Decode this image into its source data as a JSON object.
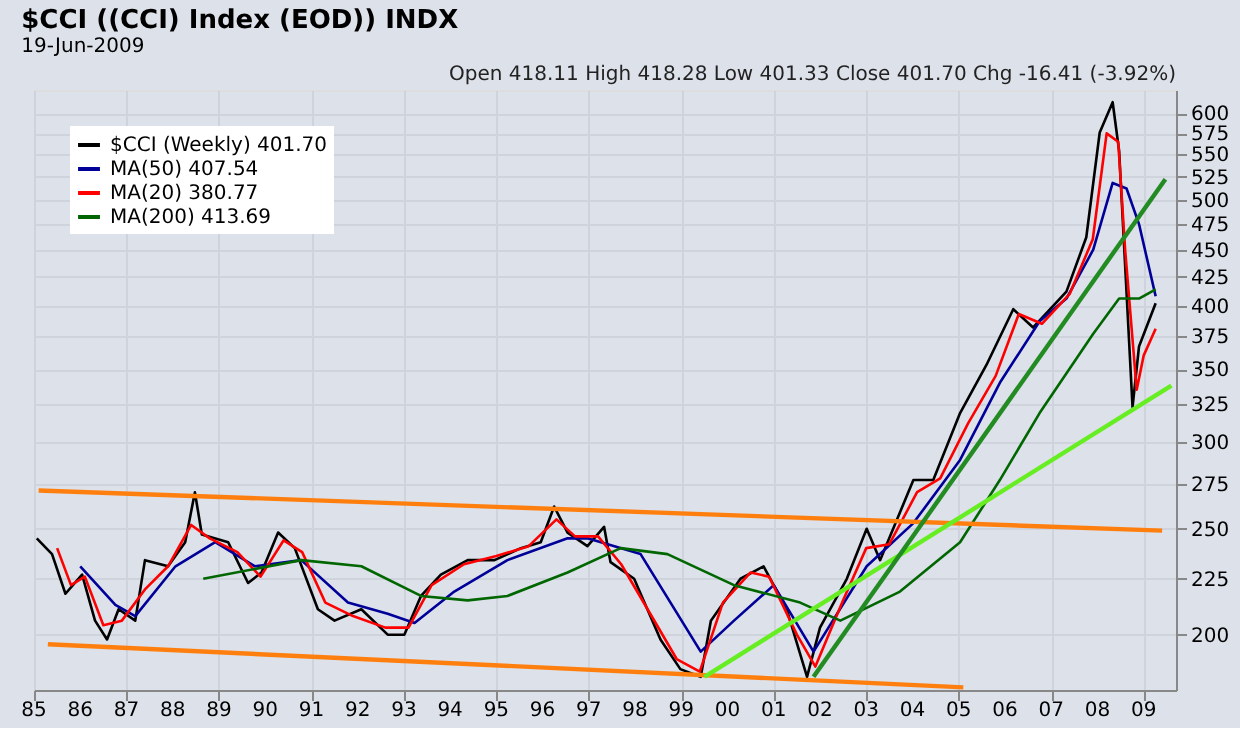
{
  "chart_data": {
    "type": "line",
    "title": "$CCI ((CCI) Index (EOD)) INDX",
    "subtitle": "19-Jun-2009",
    "annotations": [
      "Open 418.11  High 418.28  Low 401.33  Close 401.70  Chg -16.41 (-3.92%)"
    ],
    "xlim": [
      1985,
      2009.7
    ],
    "ylim": [
      178,
      630
    ],
    "log": "y",
    "grid": true,
    "legend": "top left",
    "marker": "none",
    "line_style": "solid",
    "xticks": [
      {
        "value": 1985,
        "label": "85"
      },
      {
        "value": 1986,
        "label": "86"
      },
      {
        "value": 1987,
        "label": "87"
      },
      {
        "value": 1988,
        "label": "88"
      },
      {
        "value": 1989,
        "label": "89"
      },
      {
        "value": 1990,
        "label": "90"
      },
      {
        "value": 1991,
        "label": "91"
      },
      {
        "value": 1992,
        "label": "92"
      },
      {
        "value": 1993,
        "label": "93"
      },
      {
        "value": 1994,
        "label": "94"
      },
      {
        "value": 1995,
        "label": "95"
      },
      {
        "value": 1996,
        "label": "96"
      },
      {
        "value": 1997,
        "label": "97"
      },
      {
        "value": 1998,
        "label": "98"
      },
      {
        "value": 1999,
        "label": "99"
      },
      {
        "value": 2000,
        "label": "00"
      },
      {
        "value": 2001,
        "label": "01"
      },
      {
        "value": 2002,
        "label": "02"
      },
      {
        "value": 2003,
        "label": "03"
      },
      {
        "value": 2004,
        "label": "04"
      },
      {
        "value": 2005,
        "label": "05"
      },
      {
        "value": 2006,
        "label": "06"
      },
      {
        "value": 2007,
        "label": "07"
      },
      {
        "value": 2008,
        "label": "08"
      },
      {
        "value": 2009,
        "label": "09"
      }
    ],
    "yticks": [
      200,
      225,
      250,
      275,
      300,
      325,
      350,
      375,
      400,
      425,
      450,
      475,
      500,
      525,
      550,
      575,
      600
    ],
    "series": [
      {
        "name": "$CCI (Weekly) 401.70",
        "color": "#000000",
        "x": [
          1985.06,
          1985.39,
          1985.68,
          1986.04,
          1986.32,
          1986.58,
          1986.83,
          1987.19,
          1987.4,
          1987.9,
          1988.27,
          1988.48,
          1988.63,
          1989.2,
          1989.63,
          1989.92,
          1990.28,
          1990.64,
          1991.14,
          1991.5,
          1992.08,
          1992.65,
          1993.01,
          1993.37,
          1993.8,
          1994.38,
          1994.96,
          1995.53,
          1995.96,
          1996.25,
          1996.54,
          1996.97,
          1997.33,
          1997.47,
          1997.98,
          1998.55,
          1998.98,
          1999.42,
          1999.64,
          2000.28,
          2000.78,
          2001.28,
          2001.72,
          2002.0,
          2002.58,
          2003.01,
          2003.3,
          2004.02,
          2004.45,
          2005.03,
          2005.6,
          2006.18,
          2006.61,
          2007.33,
          2007.76,
          2008.05,
          2008.33,
          2008.47,
          2008.76,
          2008.9,
          2009.26
        ],
        "values": [
          245,
          237,
          218,
          227,
          206,
          198,
          211,
          206,
          234,
          231,
          243,
          270,
          247,
          243,
          223,
          228,
          248,
          240,
          211,
          206,
          211,
          200,
          200,
          217,
          227,
          234,
          234,
          240,
          243,
          262,
          248,
          241,
          251,
          233,
          225,
          198,
          186,
          183,
          206,
          225,
          231,
          211,
          183,
          203,
          225,
          250,
          234,
          277,
          277,
          319,
          353,
          397,
          382,
          412,
          462,
          576,
          614,
          554,
          323,
          367,
          402
        ]
      },
      {
        "name": "MA(50) 407.54",
        "color": "#000099",
        "x": [
          1986.0,
          1986.76,
          1987.19,
          1988.06,
          1988.92,
          1989.78,
          1990.78,
          1991.79,
          1992.65,
          1993.23,
          1994.09,
          1995.24,
          1996.54,
          1996.97,
          1998.12,
          1999.42,
          2000.14,
          2001.0,
          2001.86,
          2003.01,
          2004.02,
          2005.03,
          2005.89,
          2006.75,
          2007.33,
          2007.91,
          2008.33,
          2008.63,
          2008.9,
          2009.26
        ],
        "values": [
          231,
          213,
          208,
          231,
          243,
          231,
          234,
          214,
          209,
          205,
          219,
          234,
          245,
          245,
          237,
          193,
          206,
          222,
          193,
          231,
          253,
          289,
          340,
          387,
          406,
          450,
          518,
          512,
          475,
          408
        ]
      },
      {
        "name": "MA(20) 380.77",
        "color": "#ff0000",
        "x": [
          1985.5,
          1985.8,
          1986.1,
          1986.5,
          1986.9,
          1987.4,
          1987.9,
          1988.4,
          1988.8,
          1989.4,
          1989.9,
          1990.4,
          1990.8,
          1991.3,
          1991.9,
          1992.6,
          1993.1,
          1993.6,
          1994.3,
          1995.0,
          1995.7,
          1996.3,
          1996.7,
          1997.2,
          1997.7,
          1998.3,
          1998.9,
          1999.4,
          1999.9,
          2000.5,
          2000.9,
          2001.5,
          2001.9,
          2002.5,
          2003.0,
          2003.5,
          2004.1,
          2004.6,
          2005.2,
          2005.8,
          2006.3,
          2006.8,
          2007.4,
          2007.9,
          2008.2,
          2008.45,
          2008.6,
          2008.85,
          2009.0,
          2009.26
        ],
        "values": [
          240,
          222,
          226,
          204,
          206,
          220,
          231,
          252,
          245,
          238,
          226,
          244,
          238,
          214,
          208,
          203,
          203,
          222,
          232,
          236,
          241,
          255,
          246,
          246,
          232,
          210,
          190,
          185,
          214,
          228,
          226,
          200,
          187,
          215,
          240,
          242,
          270,
          278,
          312,
          345,
          393,
          385,
          410,
          460,
          575,
          565,
          450,
          335,
          360,
          381
        ]
      },
      {
        "name": "MA(200) 413.69",
        "color": "#006600",
        "x": [
          1988.66,
          1990.78,
          1992.08,
          1993.37,
          1994.38,
          1995.24,
          1996.54,
          1997.69,
          1998.7,
          2000.14,
          2001.57,
          2002.44,
          2003.73,
          2005.03,
          2005.89,
          2006.75,
          2007.91,
          2008.47,
          2008.9,
          2009.26
        ],
        "values": [
          225,
          234,
          231,
          217,
          215,
          217,
          228,
          240,
          237,
          222,
          214,
          206,
          219,
          243,
          277,
          319,
          377,
          406,
          406,
          414
        ]
      },
      {
        "color": "#ff7f0e",
        "x": [
          1985.1,
          2009.4
        ],
        "values": [
          271,
          249
        ]
      },
      {
        "color": "#ff7f0e",
        "x": [
          1985.3,
          2005.1
        ],
        "values": [
          196,
          179
        ]
      },
      {
        "color": "#66ee22",
        "x": [
          1999.5,
          2009.6
        ],
        "values": [
          183,
          338
        ]
      },
      {
        "color": "#228b22",
        "x": [
          2001.86,
          2009.47
        ],
        "values": [
          183,
          522
        ]
      }
    ]
  }
}
